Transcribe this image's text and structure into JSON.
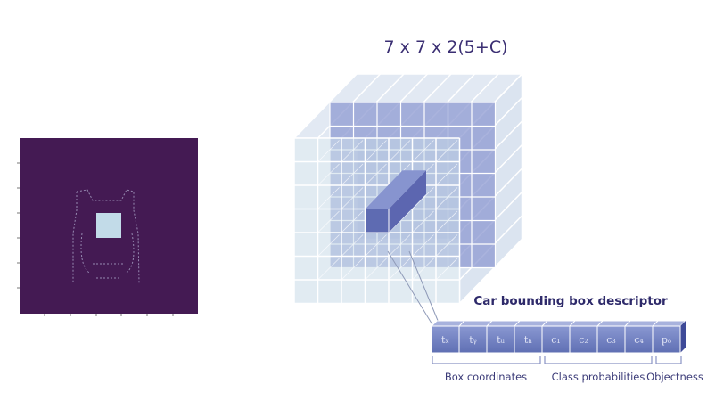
{
  "diagram": {
    "title": "7 x 7 x 2(5+C)",
    "descriptor": {
      "title": "Car bounding box descriptor",
      "cells": [
        "tₓ",
        "tᵧ",
        "tᵤ",
        "tₕ",
        "c₁",
        "c₂",
        "c₃",
        "c₄",
        "pₒ"
      ],
      "groups": [
        {
          "label": "Box coordinates"
        },
        {
          "label": "Class probabilities"
        },
        {
          "label": "Objectness"
        }
      ]
    },
    "colors": {
      "heatmap_bg": "#441a53",
      "highlight": "#c2dbe8",
      "cube_front": "#c8dbe7",
      "cube_back": "#8e9ad2",
      "cell_fill": "#6f7ec0",
      "title_text": "#3b2f73"
    }
  }
}
